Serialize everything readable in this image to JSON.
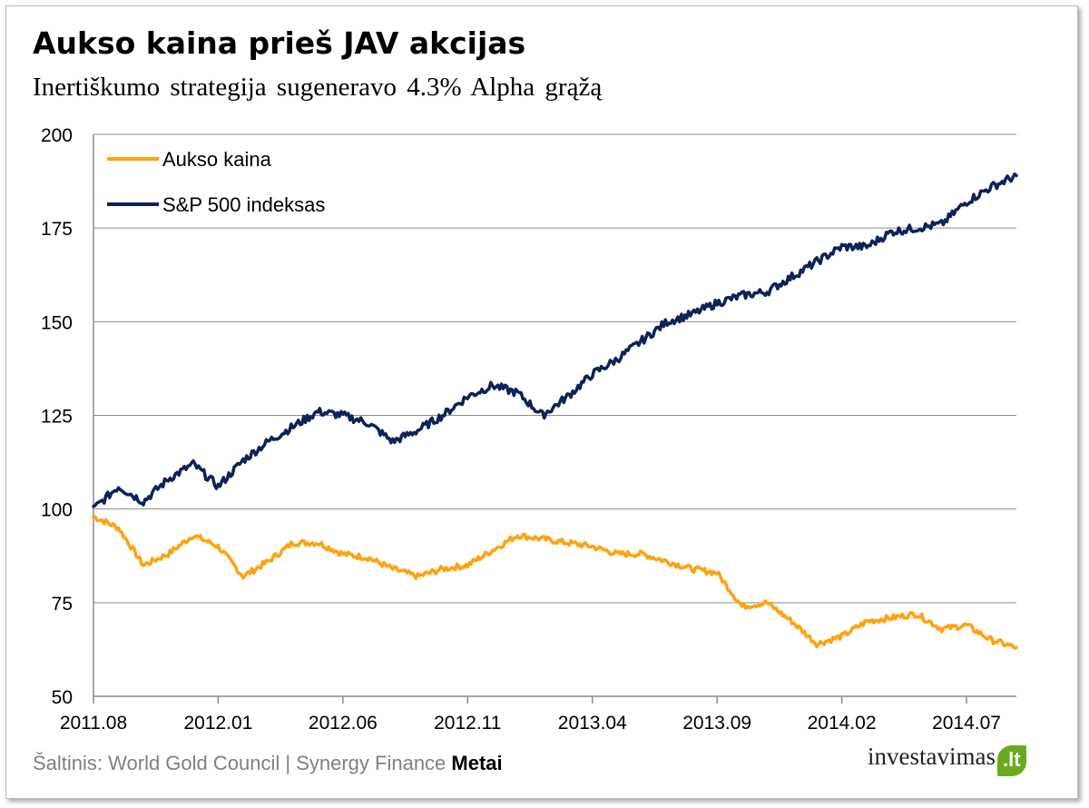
{
  "title": "Aukso kaina prieš JAV akcijas",
  "subtitle": "Inertiškumo strategija sugeneravo 4.3% Alpha grąžą",
  "source": {
    "text": "Šaltinis: World Gold Council | Synergy Finance ",
    "bold": "Metai"
  },
  "logo": {
    "text": "investavimas",
    "leaf": ".lt"
  },
  "chart_data": {
    "type": "line",
    "title": "Aukso kaina prieš JAV akcijas",
    "subtitle": "Inertiškumo strategija sugeneravo 4.3% Alpha grąžą",
    "xlabel": "",
    "ylabel": "",
    "ylim": [
      50,
      200
    ],
    "yticks": [
      "200",
      "175",
      "150",
      "125",
      "100",
      "75",
      "50"
    ],
    "xticks": [
      "2011.08",
      "2012.01",
      "2012.06",
      "2012.11",
      "2013.04",
      "2013.09",
      "2014.02",
      "2014.07"
    ],
    "grid": true,
    "legend": "top-left",
    "colors": {
      "gold": "#ffa20f",
      "sp500": "#0d2258"
    },
    "x_months": [
      0,
      1,
      2,
      3,
      4,
      5,
      6,
      7,
      8,
      9,
      10,
      11,
      12,
      13,
      14,
      15,
      16,
      17,
      18,
      19,
      20,
      21,
      22,
      23,
      24,
      25,
      26,
      27,
      28,
      29,
      30,
      31,
      32,
      33,
      34,
      35,
      36,
      37
    ],
    "series": [
      {
        "name": "Aukso kaina",
        "color": "#ffa20f",
        "values": [
          98,
          95,
          85,
          88,
          93,
          90,
          82,
          86,
          91,
          91,
          88,
          87,
          84,
          82,
          84,
          85,
          89,
          93,
          92,
          91,
          90,
          88,
          88,
          86,
          84,
          83,
          74,
          75,
          70,
          64,
          66,
          70,
          71,
          72,
          68,
          69,
          65,
          63
        ]
      },
      {
        "name": "S&P 500 indeksas",
        "color": "#0d2258",
        "values": [
          100,
          106,
          102,
          108,
          112,
          106,
          113,
          118,
          122,
          126,
          125,
          123,
          118,
          121,
          125,
          130,
          133,
          131,
          125,
          130,
          136,
          140,
          145,
          150,
          152,
          155,
          157,
          158,
          162,
          166,
          170,
          170,
          174,
          175,
          176,
          182,
          186,
          189
        ]
      }
    ]
  }
}
